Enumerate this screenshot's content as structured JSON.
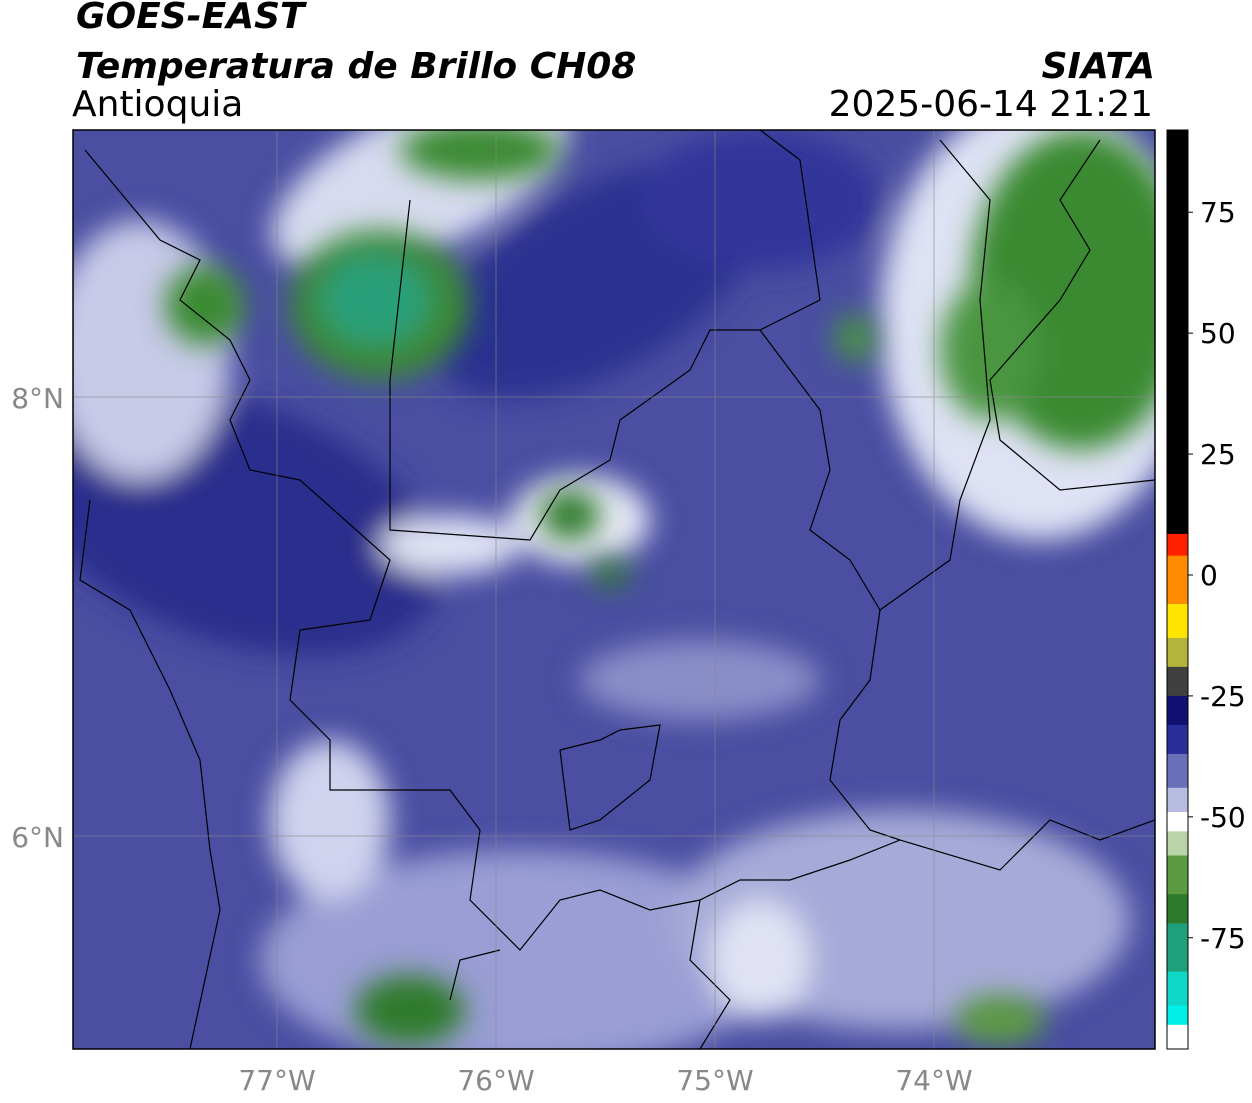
{
  "header": {
    "title": "GOES-EAST",
    "subtitle": "Temperatura de Brillo CH08",
    "region": "Antioquia",
    "source": "SIATA",
    "datetime": "2025-06-14 21:21"
  },
  "map": {
    "lat_labels": [
      "8°N",
      "6°N"
    ],
    "lon_labels": [
      "77°W",
      "76°W",
      "75°W",
      "74°W"
    ]
  },
  "colorbar": {
    "range": [
      -98,
      92
    ],
    "ticks": [
      75,
      50,
      25,
      0,
      -25,
      -50,
      -75
    ],
    "bands": [
      {
        "value": 92,
        "color": "#000000"
      },
      {
        "value": 8.5,
        "color": "#ff2000"
      },
      {
        "value": 4,
        "color": "#ff8c00"
      },
      {
        "value": -6,
        "color": "#ffe600"
      },
      {
        "value": -13,
        "color": "#b4b43c"
      },
      {
        "value": -19,
        "color": "#404040"
      },
      {
        "value": -25,
        "color": "#101070"
      },
      {
        "value": -31,
        "color": "#2a2e9a"
      },
      {
        "value": -37,
        "color": "#6a70b8"
      },
      {
        "value": -44,
        "color": "#b8bce0"
      },
      {
        "value": -49,
        "color": "#ffffff"
      },
      {
        "value": -53,
        "color": "#b8d4a8"
      },
      {
        "value": -58,
        "color": "#5a9a40"
      },
      {
        "value": -66,
        "color": "#2e7a2a"
      },
      {
        "value": -72,
        "color": "#20a07a"
      },
      {
        "value": -82,
        "color": "#10d8c8"
      },
      {
        "value": -89,
        "color": "#00f0e8"
      },
      {
        "value": -93,
        "color": "#ffffff"
      }
    ]
  }
}
